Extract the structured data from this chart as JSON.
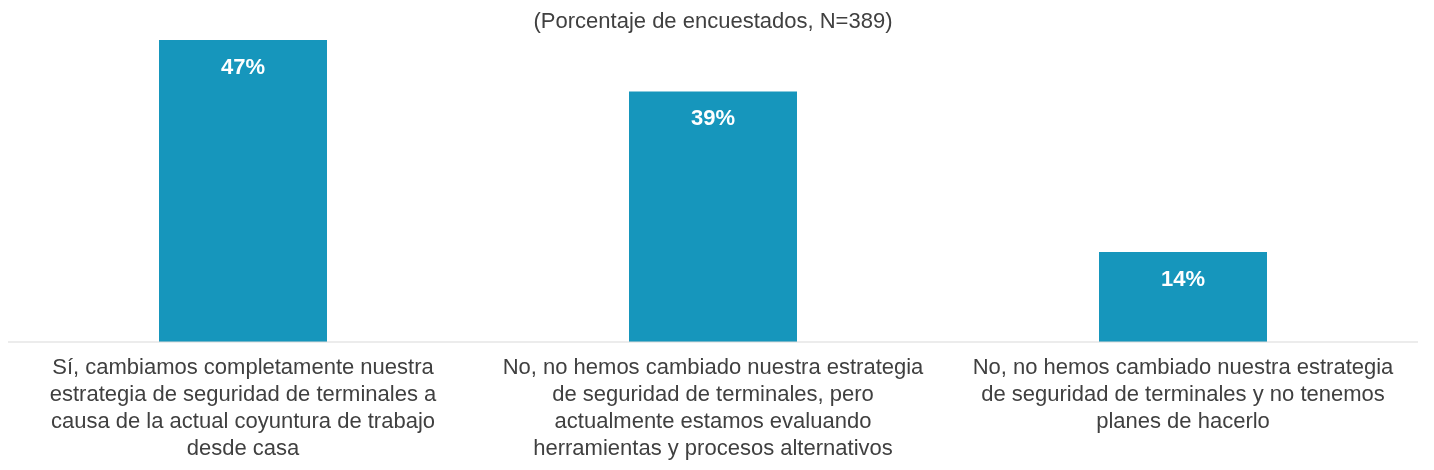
{
  "chart_data": {
    "type": "bar",
    "subtitle": "(Porcentaje de encuestados, N=389)",
    "categories": [
      "Sí, cambiamos completamente nuestra estrategia de seguridad de terminales a causa de la actual coyuntura de trabajo desde casa",
      "No, no hemos cambiado nuestra estrategia de seguridad de terminales, pero actualmente estamos evaluando herramientas y procesos alternativos",
      "No, no hemos cambiado nuestra estrategia de seguridad de terminales y no tenemos planes de hacerlo"
    ],
    "values": [
      47,
      39,
      14
    ],
    "value_labels": [
      "47%",
      "39%",
      "14%"
    ],
    "color": "#1696bc"
  }
}
